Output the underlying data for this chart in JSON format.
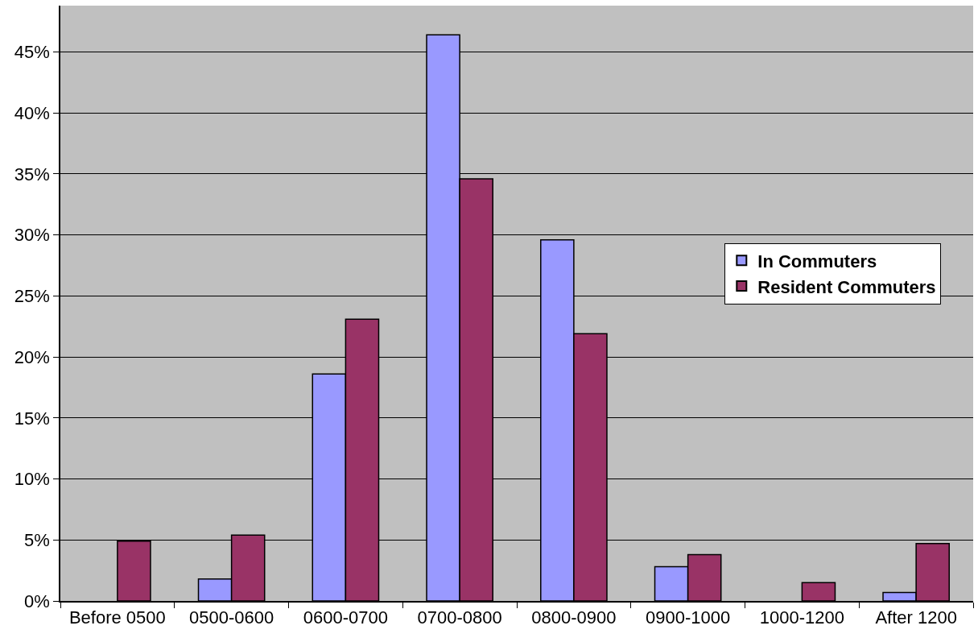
{
  "chart_data": {
    "type": "bar",
    "categories": [
      "Before 0500",
      "0500-0600",
      "0600-0700",
      "0700-0800",
      "0800-0900",
      "0900-1000",
      "1000-1200",
      "After 1200"
    ],
    "series": [
      {
        "name": "In Commuters",
        "color": "#9999ff",
        "values": [
          null,
          1.8,
          18.6,
          46.4,
          29.6,
          2.8,
          null,
          0.7
        ]
      },
      {
        "name": "Resident Commuters",
        "color": "#993366",
        "values": [
          4.9,
          5.4,
          23.1,
          34.6,
          21.9,
          3.8,
          1.5,
          4.7
        ]
      }
    ],
    "ylim": [
      0,
      48.8
    ],
    "yticks": [
      {
        "value": 0,
        "label": "0%"
      },
      {
        "value": 5,
        "label": "5%"
      },
      {
        "value": 10,
        "label": "10%"
      },
      {
        "value": 15,
        "label": "15%"
      },
      {
        "value": 20,
        "label": "20%"
      },
      {
        "value": 25,
        "label": "25%"
      },
      {
        "value": 30,
        "label": "30%"
      },
      {
        "value": 35,
        "label": "35%"
      },
      {
        "value": 40,
        "label": "40%"
      },
      {
        "value": 45,
        "label": "45%"
      }
    ],
    "grid": "y",
    "legend": "right"
  }
}
